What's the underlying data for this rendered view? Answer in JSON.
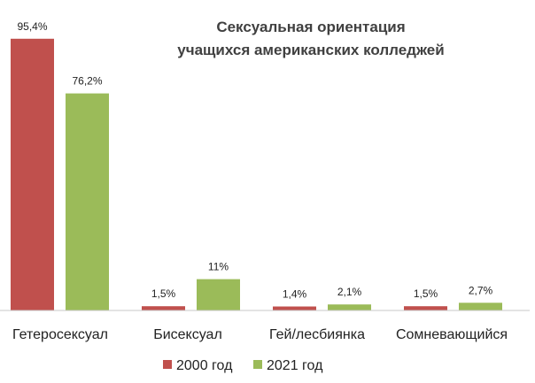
{
  "chart_data": {
    "type": "bar",
    "title": [
      "Сексуальная ориентация",
      "учащихся американских колледжей"
    ],
    "categories": [
      "Гетеросексуал",
      "Бисексуал",
      "Гей/лесбиянка",
      "Сомневающийся"
    ],
    "series": [
      {
        "name": "2000 год",
        "color": "#c0504d",
        "values": [
          95.4,
          1.5,
          1.4,
          1.5
        ],
        "labels": [
          "95,4%",
          "1,5%",
          "1,4%",
          "1,5%"
        ]
      },
      {
        "name": "2021 год",
        "color": "#9bbb59",
        "values": [
          76.2,
          11,
          2.1,
          2.7
        ],
        "labels": [
          "76,2%",
          "11%",
          "2,1%",
          "2,7%"
        ]
      }
    ],
    "ylim": [
      0,
      100
    ],
    "grid": false,
    "legend_position": "bottom"
  }
}
